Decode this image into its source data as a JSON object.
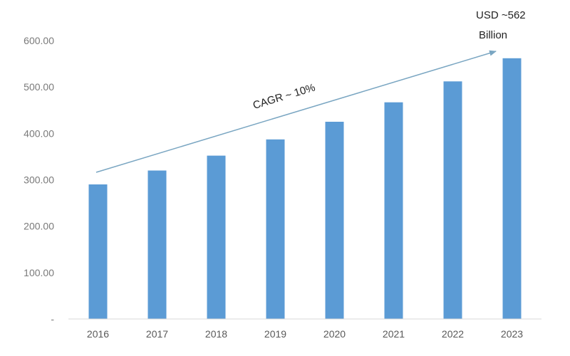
{
  "chart_data": {
    "type": "bar",
    "categories": [
      "2016",
      "2017",
      "2018",
      "2019",
      "2020",
      "2021",
      "2022",
      "2023"
    ],
    "values": [
      290,
      320,
      352,
      387,
      425,
      467,
      512,
      562
    ],
    "y_ticks": [
      "-",
      "100.00",
      "200.00",
      "300.00",
      "400.00",
      "500.00",
      "600.00"
    ],
    "ylim": [
      0,
      600
    ],
    "grid": false,
    "legend": "none",
    "bar_color": "#5b9bd5",
    "arrow_color": "#7aa6c2",
    "annotations": {
      "cagr": "CAGR ~ 10%",
      "usd_line1": "USD ~562",
      "usd_line2": "Billion"
    }
  }
}
